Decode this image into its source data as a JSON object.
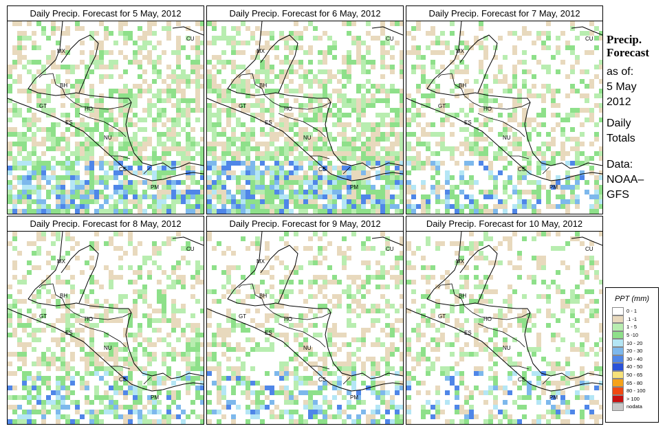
{
  "panels": [
    {
      "title": "Daily Precip. Forecast for  5 May, 2012",
      "seed": 11,
      "wet": 0.55
    },
    {
      "title": "Daily Precip. Forecast for  6 May, 2012",
      "seed": 23,
      "wet": 0.62
    },
    {
      "title": "Daily Precip. Forecast for  7 May, 2012",
      "seed": 37,
      "wet": 0.35
    },
    {
      "title": "Daily Precip. Forecast for  8 May, 2012",
      "seed": 41,
      "wet": 0.38
    },
    {
      "title": "Daily Precip. Forecast for  9 May, 2012",
      "seed": 53,
      "wet": 0.33
    },
    {
      "title": "Daily Precip. Forecast for  10 May, 2012",
      "seed": 67,
      "wet": 0.25
    }
  ],
  "country_labels": [
    "MX",
    "BH",
    "GT",
    "HO",
    "ES",
    "NU",
    "CS",
    "PM",
    "CU"
  ],
  "sidebar": {
    "title_line1": "Precip.",
    "title_line2": "Forecast",
    "asof_line1": "as of:",
    "asof_line2": "5 May",
    "asof_line3": "2012",
    "totals_line1": "Daily",
    "totals_line2": "Totals",
    "data_line1": "Data:",
    "data_line2": "NOAA–",
    "data_line3": "GFS"
  },
  "legend": {
    "title": "PPT (mm)",
    "items": [
      {
        "label": "0 - 1",
        "color": "#ffffff"
      },
      {
        "label": ".1 -1",
        "color": "#e8d9bd"
      },
      {
        "label": "1 - 5",
        "color": "#b8edb0"
      },
      {
        "label": "5 -10",
        "color": "#8ee08a"
      },
      {
        "label": "10 - 20",
        "color": "#b4e6f5"
      },
      {
        "label": "20 - 30",
        "color": "#7db8ec"
      },
      {
        "label": "30 - 40",
        "color": "#4f86e8"
      },
      {
        "label": "40 - 50",
        "color": "#2a52d8"
      },
      {
        "label": "50 - 65",
        "color": "#f7e27a"
      },
      {
        "label": "65 - 80",
        "color": "#f5a21a"
      },
      {
        "label": "80 - 100",
        "color": "#f04a12"
      },
      {
        "label": "> 100",
        "color": "#c81010"
      },
      {
        "label": "nodata",
        "color": "#c8c8c8"
      }
    ]
  }
}
